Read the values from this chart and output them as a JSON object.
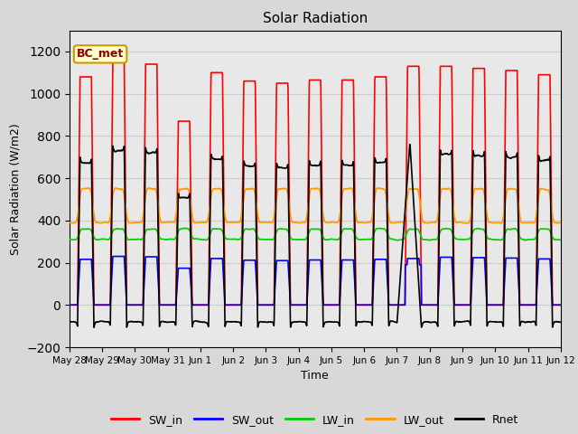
{
  "title": "Solar Radiation",
  "xlabel": "Time",
  "ylabel": "Solar Radiation (W/m2)",
  "ylim": [
    -200,
    1300
  ],
  "yticks": [
    -200,
    0,
    200,
    400,
    600,
    800,
    1000,
    1200
  ],
  "annotation_text": "BC_met",
  "annotation_bg": "#ffffcc",
  "annotation_border": "#cc9900",
  "series_colors": {
    "SW_in": "#ff0000",
    "SW_out": "#0000ff",
    "LW_in": "#00cc00",
    "LW_out": "#ff9900",
    "Rnet": "#000000"
  },
  "grid_color": "#cccccc",
  "bg_color": "#d8d8d8",
  "plot_bg": "#e8e8e8",
  "n_days": 15,
  "pts_per_day": 144,
  "xtick_labels": [
    "May 28",
    "May 29",
    "May 30",
    "May 31",
    "Jun 1",
    "Jun 2",
    "Jun 3",
    "Jun 4",
    "Jun 5",
    "Jun 6",
    "Jun 7",
    "Jun 8",
    "Jun 9",
    "Jun 10",
    "Jun 11",
    "Jun 12"
  ]
}
